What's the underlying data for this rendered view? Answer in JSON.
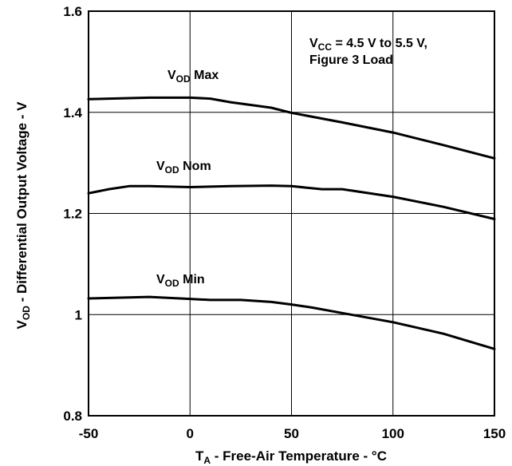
{
  "chart_data": {
    "type": "line",
    "title": "",
    "xlabel": {
      "main": "T",
      "sub": "A",
      "rest": " - Free-Air Temperature - °C"
    },
    "ylabel": {
      "main": "V",
      "sub": "OD",
      "rest": " - Differential Output Voltage - V"
    },
    "xlim": [
      -50,
      150
    ],
    "ylim": [
      0.8,
      1.6
    ],
    "x_ticks": [
      -50,
      0,
      50,
      100,
      150
    ],
    "x_tick_labels": [
      "-50",
      "0",
      "50",
      "100",
      "150"
    ],
    "y_ticks": [
      0.8,
      1.0,
      1.2,
      1.4,
      1.6
    ],
    "y_tick_labels": [
      "0.8",
      "1",
      "1.2",
      "1.4",
      "1.6"
    ],
    "grid": true,
    "annotation": {
      "line1": {
        "main": "V",
        "sub": "CC",
        "rest": " = 4.5 V to 5.5 V,"
      },
      "line2": "Figure 3 Load"
    },
    "series": [
      {
        "name": {
          "main": "V",
          "sub": "OD",
          "rest": " Max"
        },
        "x": [
          -50,
          -30,
          -20,
          0,
          10,
          20,
          40,
          50,
          75,
          100,
          125,
          150
        ],
        "values": [
          1.426,
          1.428,
          1.429,
          1.429,
          1.427,
          1.42,
          1.409,
          1.399,
          1.38,
          1.36,
          1.335,
          1.309
        ]
      },
      {
        "name": {
          "main": "V",
          "sub": "OD",
          "rest": " Nom"
        },
        "x": [
          -50,
          -40,
          -30,
          -20,
          0,
          20,
          40,
          50,
          65,
          75,
          80,
          100,
          125,
          150
        ],
        "values": [
          1.24,
          1.248,
          1.254,
          1.254,
          1.252,
          1.254,
          1.255,
          1.254,
          1.248,
          1.248,
          1.245,
          1.233,
          1.213,
          1.189
        ]
      },
      {
        "name": {
          "main": "V",
          "sub": "OD",
          "rest": " Min"
        },
        "x": [
          -50,
          -20,
          0,
          10,
          25,
          40,
          50,
          60,
          75,
          100,
          125,
          150
        ],
        "values": [
          1.032,
          1.035,
          1.031,
          1.029,
          1.029,
          1.025,
          1.02,
          1.014,
          1.003,
          0.985,
          0.962,
          0.932
        ]
      }
    ]
  }
}
